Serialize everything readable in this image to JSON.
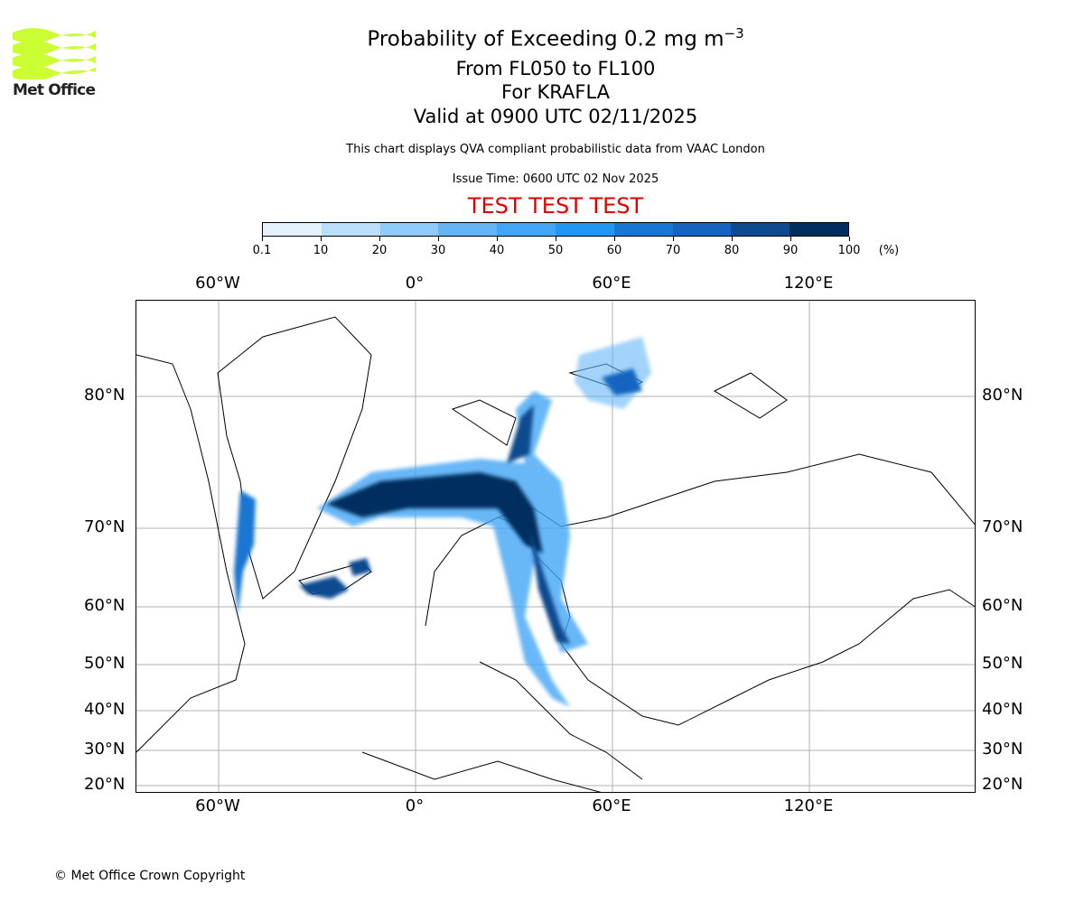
{
  "logo": {
    "text": "Met Office",
    "color": "#ccff33"
  },
  "title": {
    "main": "Probability of Exceeding 0.2 mg m",
    "main_sup": "−3",
    "line2": "From FL050 to FL100",
    "line3": "For KRAFLA",
    "line4": "Valid at 0900 UTC 02/11/2025"
  },
  "subtitle": "This chart displays QVA compliant probabilistic data from VAAC London",
  "issue_time": "Issue Time: 0600 UTC 02 Nov 2025",
  "test_banner": "TEST TEST TEST",
  "colorbar": {
    "unit": "(%)",
    "ticks": [
      "0.1",
      "10",
      "20",
      "30",
      "40",
      "50",
      "60",
      "70",
      "80",
      "90",
      "100"
    ],
    "colors": [
      "#e3f2fd",
      "#bbdefb",
      "#90caf9",
      "#64b5f6",
      "#42a5f5",
      "#2196f3",
      "#1976d2",
      "#1565c0",
      "#0d4a8f",
      "#002f5f"
    ]
  },
  "axes": {
    "lon_labels": [
      "60°W",
      "0°",
      "60°E",
      "120°E"
    ],
    "lat_labels": [
      "80°N",
      "70°N",
      "60°N",
      "50°N",
      "40°N",
      "30°N",
      "20°N"
    ]
  },
  "copyright": "© Met Office Crown Copyright"
}
